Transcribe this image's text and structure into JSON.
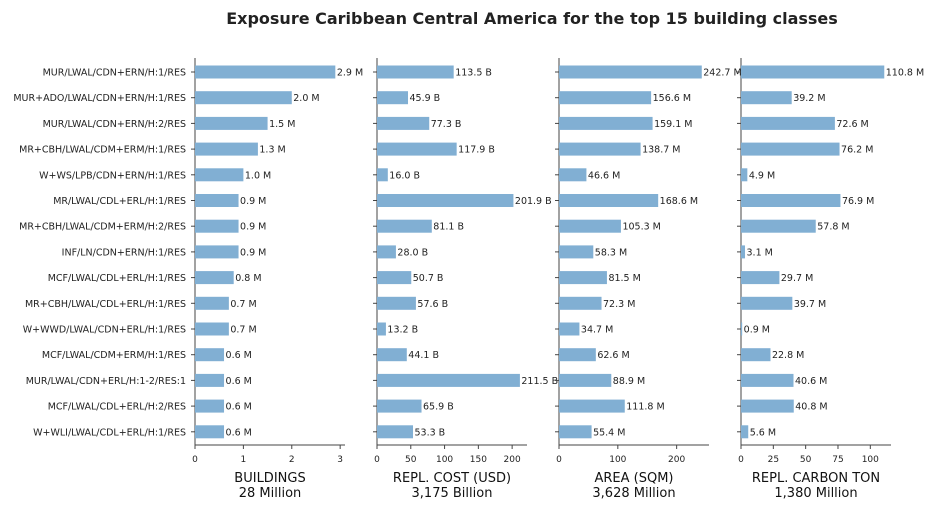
{
  "title": "Exposure Caribbean Central America for the top 15 building classes",
  "colors": {
    "bar": "#81afd3",
    "axis": "#444444",
    "text": "#222222"
  },
  "chart_data": {
    "type": "bar",
    "orientation": "horizontal",
    "categories": [
      "MUR/LWAL/CDN+ERN/H:1/RES",
      "MUR+ADO/LWAL/CDN+ERN/H:1/RES",
      "MUR/LWAL/CDN+ERN/H:2/RES",
      "MR+CBH/LWAL/CDM+ERM/H:1/RES",
      "W+WS/LPB/CDN+ERN/H:1/RES",
      "MR/LWAL/CDL+ERL/H:1/RES",
      "MR+CBH/LWAL/CDM+ERM/H:2/RES",
      "INF/LN/CDN+ERN/H:1/RES",
      "MCF/LWAL/CDL+ERL/H:1/RES",
      "MR+CBH/LWAL/CDL+ERL/H:1/RES",
      "W+WWD/LWAL/CDN+ERL/H:1/RES",
      "MCF/LWAL/CDM+ERM/H:1/RES",
      "MUR/LWAL/CDN+ERL/H:1-2/RES:1",
      "MCF/LWAL/CDL+ERL/H:2/RES",
      "W+WLI/LWAL/CDL+ERL/H:1/RES"
    ],
    "panels": [
      {
        "name": "BUILDINGS",
        "total": "28 Million",
        "xlim": [
          0,
          3.1
        ],
        "ticks": [
          0,
          1,
          2,
          3
        ],
        "values": [
          2.9,
          2.0,
          1.5,
          1.3,
          1.0,
          0.9,
          0.9,
          0.9,
          0.8,
          0.7,
          0.7,
          0.6,
          0.6,
          0.6,
          0.6
        ],
        "labels": [
          "2.9 M",
          "2.0 M",
          "1.5 M",
          "1.3 M",
          "1.0 M",
          "0.9 M",
          "0.9 M",
          "0.9 M",
          "0.8 M",
          "0.7 M",
          "0.7 M",
          "0.6 M",
          "0.6 M",
          "0.6 M",
          "0.6 M"
        ]
      },
      {
        "name": "REPL. COST (USD)",
        "total": "3,175 Billion",
        "xlim": [
          0,
          222
        ],
        "ticks": [
          0,
          50,
          100,
          150,
          200
        ],
        "values": [
          113.5,
          45.9,
          77.3,
          117.9,
          16.0,
          201.9,
          81.1,
          28.0,
          50.7,
          57.6,
          13.2,
          44.1,
          211.5,
          65.9,
          53.3
        ],
        "labels": [
          "113.5 B",
          "45.9 B",
          "77.3 B",
          "117.9 B",
          "16.0 B",
          "201.9 B",
          "81.1 B",
          "28.0 B",
          "50.7 B",
          "57.6 B",
          "13.2 B",
          "44.1 B",
          "211.5 B",
          "65.9 B",
          "53.3 B"
        ]
      },
      {
        "name": "AREA (SQM)",
        "total": "3,628 Million",
        "xlim": [
          0,
          255
        ],
        "ticks": [
          0,
          100,
          200
        ],
        "values": [
          242.7,
          156.6,
          159.1,
          138.7,
          46.6,
          168.6,
          105.3,
          58.3,
          81.5,
          72.3,
          34.7,
          62.6,
          88.9,
          111.8,
          55.4
        ],
        "labels": [
          "242.7 M",
          "156.6 M",
          "159.1 M",
          "138.7 M",
          "46.6 M",
          "168.6 M",
          "105.3 M",
          "58.3 M",
          "81.5 M",
          "72.3 M",
          "34.7 M",
          "62.6 M",
          "88.9 M",
          "111.8 M",
          "55.4 M"
        ]
      },
      {
        "name": "REPL. CARBON TON",
        "total": "1,380 Million",
        "xlim": [
          0,
          116
        ],
        "ticks": [
          0,
          25,
          50,
          75,
          100
        ],
        "values": [
          110.8,
          39.2,
          72.6,
          76.2,
          4.9,
          76.9,
          57.8,
          3.1,
          29.7,
          39.7,
          0.9,
          22.8,
          40.6,
          40.8,
          5.6
        ],
        "labels": [
          "110.8 M",
          "39.2 M",
          "72.6 M",
          "76.2 M",
          "4.9 M",
          "76.9 M",
          "57.8 M",
          "3.1 M",
          "29.7 M",
          "39.7 M",
          "0.9 M",
          "22.8 M",
          "40.6 M",
          "40.8 M",
          "5.6 M"
        ]
      }
    ]
  }
}
